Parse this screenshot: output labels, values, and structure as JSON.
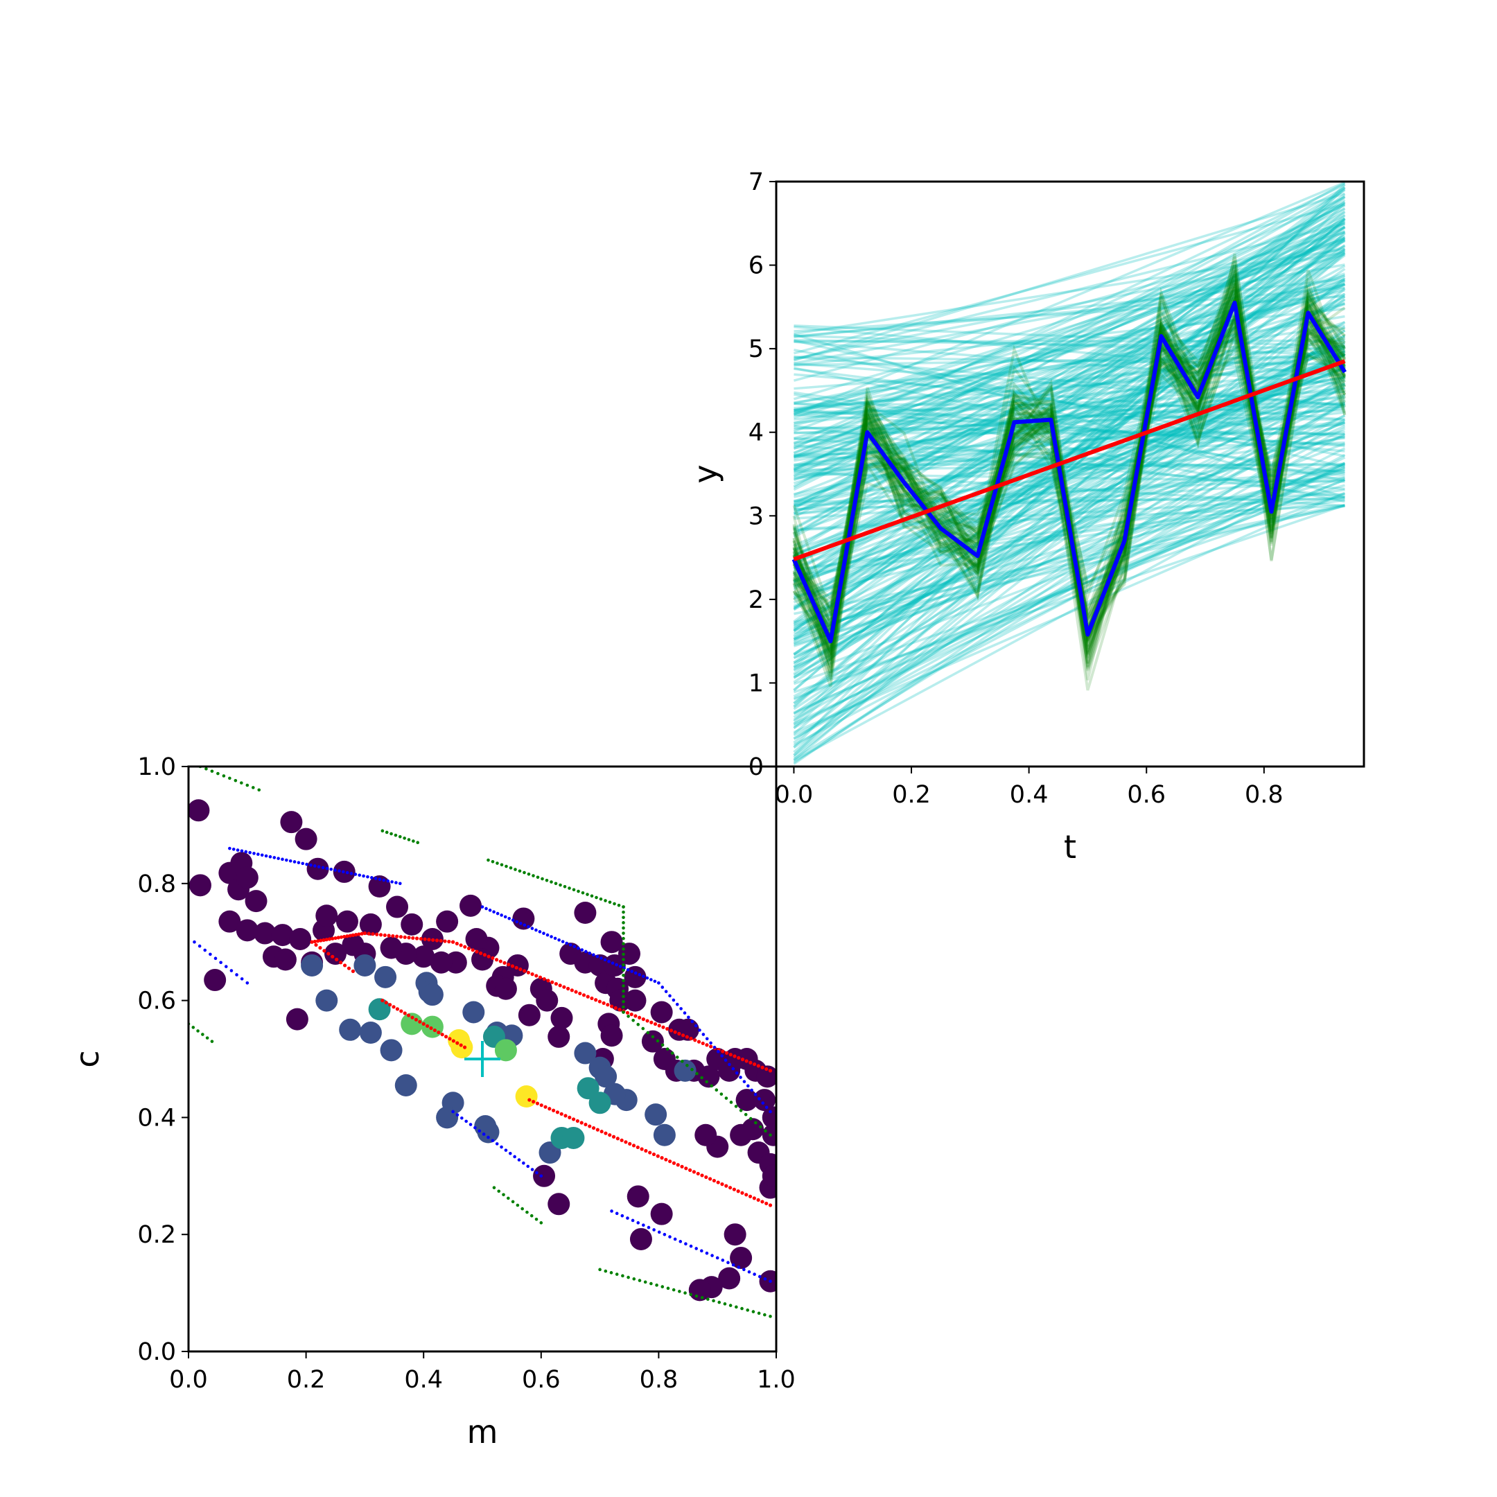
{
  "colors": {
    "fit_lines": "#00bfbf",
    "data_samples": "#008000",
    "data_line": "#0000ff",
    "model_line": "#ff0000",
    "contour_inner": "#ff0000",
    "contour_mid": "#0000ff",
    "contour_outer": "#008000",
    "marker": "#00bfbf",
    "viridis": [
      "#440154",
      "#3b528b",
      "#21918c",
      "#5ec962",
      "#fde725"
    ]
  },
  "chart_data": [
    {
      "type": "line",
      "xlabel": "t",
      "ylabel": "y",
      "xlim": [
        -0.03,
        0.97
      ],
      "ylim": [
        0,
        7
      ],
      "xticks": [
        "0.0",
        "0.2",
        "0.4",
        "0.6",
        "0.8"
      ],
      "xtick_values": [
        0.0,
        0.2,
        0.4,
        0.6,
        0.8
      ],
      "yticks": [
        "0",
        "1",
        "2",
        "3",
        "4",
        "5",
        "6",
        "7"
      ],
      "ytick_values": [
        0,
        1,
        2,
        3,
        4,
        5,
        6,
        7
      ],
      "grid": false,
      "series": [
        {
          "role": "data",
          "x": [
            0.0,
            0.0625,
            0.125,
            0.1875,
            0.25,
            0.3125,
            0.375,
            0.4375,
            0.5,
            0.5625,
            0.625,
            0.6875,
            0.75,
            0.8125,
            0.875,
            0.9375
          ],
          "y": [
            2.48,
            1.5,
            4.0,
            3.4,
            2.85,
            2.52,
            4.12,
            4.15,
            1.58,
            2.7,
            5.15,
            4.42,
            5.55,
            3.05,
            5.43,
            4.72
          ]
        },
        {
          "role": "model",
          "x": [
            0.0,
            0.9375
          ],
          "y": [
            2.48,
            4.85
          ]
        }
      ],
      "fit_lines": {
        "count": 260,
        "intercept_range": [
          0.0,
          5.3
        ],
        "endpoint_range": [
          3.1,
          7.0
        ]
      },
      "noisy_samples": {
        "count": 60
      }
    },
    {
      "type": "scatter",
      "xlabel": "m",
      "ylabel": "c",
      "xlim": [
        0,
        1
      ],
      "ylim": [
        0,
        1
      ],
      "xticks": [
        "0.0",
        "0.2",
        "0.4",
        "0.6",
        "0.8",
        "1.0"
      ],
      "xtick_values": [
        0.0,
        0.2,
        0.4,
        0.6,
        0.8,
        1.0
      ],
      "yticks": [
        "0.0",
        "0.2",
        "0.4",
        "0.6",
        "0.8",
        "1.0"
      ],
      "ytick_values": [
        0.0,
        0.2,
        0.4,
        0.6,
        0.8,
        1.0
      ],
      "grid": false,
      "marker": {
        "x": 0.5,
        "y": 0.5
      },
      "points": [
        [
          0.017,
          0.925,
          0
        ],
        [
          0.02,
          0.797,
          0
        ],
        [
          0.07,
          0.818,
          0
        ],
        [
          0.09,
          0.835,
          0
        ],
        [
          0.085,
          0.79,
          0
        ],
        [
          0.1,
          0.81,
          0
        ],
        [
          0.115,
          0.77,
          0
        ],
        [
          0.175,
          0.905,
          0
        ],
        [
          0.2,
          0.876,
          0
        ],
        [
          0.22,
          0.825,
          0
        ],
        [
          0.265,
          0.82,
          0
        ],
        [
          0.325,
          0.795,
          0
        ],
        [
          0.07,
          0.735,
          0
        ],
        [
          0.1,
          0.72,
          0
        ],
        [
          0.13,
          0.715,
          0
        ],
        [
          0.16,
          0.712,
          0
        ],
        [
          0.19,
          0.705,
          0
        ],
        [
          0.23,
          0.72,
          0
        ],
        [
          0.235,
          0.745,
          0
        ],
        [
          0.27,
          0.735,
          0
        ],
        [
          0.31,
          0.73,
          0
        ],
        [
          0.355,
          0.76,
          0
        ],
        [
          0.38,
          0.73,
          0
        ],
        [
          0.415,
          0.705,
          0
        ],
        [
          0.44,
          0.735,
          0
        ],
        [
          0.48,
          0.762,
          0
        ],
        [
          0.51,
          0.69,
          0
        ],
        [
          0.535,
          0.64,
          0
        ],
        [
          0.57,
          0.74,
          0
        ],
        [
          0.56,
          0.66,
          0
        ],
        [
          0.49,
          0.705,
          0
        ],
        [
          0.455,
          0.665,
          0
        ],
        [
          0.43,
          0.665,
          0
        ],
        [
          0.4,
          0.675,
          0
        ],
        [
          0.37,
          0.68,
          0
        ],
        [
          0.345,
          0.69,
          0
        ],
        [
          0.3,
          0.68,
          0
        ],
        [
          0.28,
          0.695,
          0
        ],
        [
          0.25,
          0.68,
          0
        ],
        [
          0.21,
          0.665,
          0
        ],
        [
          0.145,
          0.675,
          0
        ],
        [
          0.165,
          0.67,
          0
        ],
        [
          0.045,
          0.635,
          0
        ],
        [
          0.185,
          0.568,
          0
        ],
        [
          0.5,
          0.67,
          0
        ],
        [
          0.525,
          0.625,
          0
        ],
        [
          0.54,
          0.62,
          0
        ],
        [
          0.6,
          0.62,
          0
        ],
        [
          0.61,
          0.6,
          0
        ],
        [
          0.58,
          0.575,
          0
        ],
        [
          0.635,
          0.57,
          0
        ],
        [
          0.63,
          0.538,
          0
        ],
        [
          0.65,
          0.68,
          0
        ],
        [
          0.675,
          0.665,
          0
        ],
        [
          0.675,
          0.75,
          0
        ],
        [
          0.7,
          0.66,
          0
        ],
        [
          0.71,
          0.63,
          0
        ],
        [
          0.72,
          0.7,
          0
        ],
        [
          0.725,
          0.66,
          0
        ],
        [
          0.73,
          0.62,
          0
        ],
        [
          0.735,
          0.6,
          0
        ],
        [
          0.76,
          0.64,
          0
        ],
        [
          0.75,
          0.68,
          0
        ],
        [
          0.76,
          0.6,
          0
        ],
        [
          0.715,
          0.56,
          0
        ],
        [
          0.72,
          0.54,
          0
        ],
        [
          0.705,
          0.5,
          0
        ],
        [
          0.79,
          0.53,
          0
        ],
        [
          0.81,
          0.5,
          0
        ],
        [
          0.805,
          0.58,
          0
        ],
        [
          0.835,
          0.55,
          0
        ],
        [
          0.85,
          0.55,
          0
        ],
        [
          0.83,
          0.48,
          0
        ],
        [
          0.86,
          0.48,
          0
        ],
        [
          0.885,
          0.47,
          0
        ],
        [
          0.9,
          0.5,
          0
        ],
        [
          0.92,
          0.48,
          0
        ],
        [
          0.93,
          0.5,
          0
        ],
        [
          0.95,
          0.5,
          0
        ],
        [
          0.965,
          0.48,
          0
        ],
        [
          0.985,
          0.47,
          0
        ],
        [
          0.95,
          0.43,
          0
        ],
        [
          0.98,
          0.43,
          0
        ],
        [
          0.9,
          0.35,
          0
        ],
        [
          0.94,
          0.37,
          0
        ],
        [
          0.96,
          0.38,
          0
        ],
        [
          0.97,
          0.34,
          0
        ],
        [
          0.99,
          0.32,
          0
        ],
        [
          0.995,
          0.4,
          0
        ],
        [
          0.995,
          0.37,
          0
        ],
        [
          0.99,
          0.28,
          0
        ],
        [
          0.995,
          0.3,
          0
        ],
        [
          0.88,
          0.37,
          0
        ],
        [
          0.93,
          0.2,
          0
        ],
        [
          0.94,
          0.16,
          0
        ],
        [
          0.92,
          0.125,
          0
        ],
        [
          0.89,
          0.11,
          0
        ],
        [
          0.87,
          0.105,
          0
        ],
        [
          0.99,
          0.12,
          0
        ],
        [
          0.77,
          0.192,
          0
        ],
        [
          0.805,
          0.235,
          0
        ],
        [
          0.765,
          0.265,
          0
        ],
        [
          0.63,
          0.252,
          0
        ],
        [
          0.605,
          0.3,
          0
        ],
        [
          0.615,
          0.34,
          1
        ],
        [
          0.55,
          0.54,
          1
        ],
        [
          0.525,
          0.545,
          1
        ],
        [
          0.485,
          0.58,
          1
        ],
        [
          0.405,
          0.63,
          1
        ],
        [
          0.41,
          0.615,
          1
        ],
        [
          0.415,
          0.61,
          1
        ],
        [
          0.335,
          0.64,
          1
        ],
        [
          0.235,
          0.6,
          1
        ],
        [
          0.275,
          0.55,
          1
        ],
        [
          0.345,
          0.515,
          1
        ],
        [
          0.37,
          0.455,
          1
        ],
        [
          0.45,
          0.425,
          1
        ],
        [
          0.44,
          0.4,
          1
        ],
        [
          0.505,
          0.385,
          1
        ],
        [
          0.51,
          0.375,
          1
        ],
        [
          0.3,
          0.66,
          1
        ],
        [
          0.21,
          0.66,
          1
        ],
        [
          0.745,
          0.43,
          1
        ],
        [
          0.725,
          0.44,
          1
        ],
        [
          0.795,
          0.405,
          1
        ],
        [
          0.81,
          0.37,
          1
        ],
        [
          0.675,
          0.51,
          1
        ],
        [
          0.7,
          0.485,
          1
        ],
        [
          0.71,
          0.47,
          1
        ],
        [
          0.845,
          0.48,
          1
        ],
        [
          0.31,
          0.545,
          1
        ],
        [
          0.325,
          0.585,
          2
        ],
        [
          0.635,
          0.365,
          2
        ],
        [
          0.655,
          0.365,
          2
        ],
        [
          0.68,
          0.45,
          2
        ],
        [
          0.7,
          0.425,
          2
        ],
        [
          0.52,
          0.538,
          2
        ],
        [
          0.38,
          0.56,
          3
        ],
        [
          0.415,
          0.555,
          3
        ],
        [
          0.54,
          0.515,
          3
        ],
        [
          0.46,
          0.532,
          4
        ],
        [
          0.465,
          0.52,
          4
        ],
        [
          0.575,
          0.436,
          4
        ]
      ]
    }
  ]
}
